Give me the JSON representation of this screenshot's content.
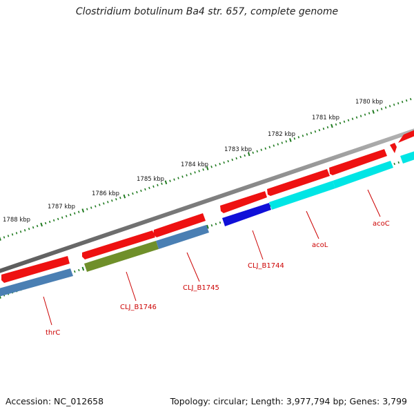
{
  "title": "Clostridium botulinum Ba4 str. 657, complete genome",
  "footer": {
    "accession": "Accession: NC_012658",
    "topology": "Topology: circular; Length: 3,977,794 bp; Genes: 3,799"
  },
  "ruler_labels": [
    "1780 kbp",
    "1781 kbp",
    "1782 kbp",
    "1783 kbp",
    "1784 kbp",
    "1785 kbp",
    "1786 kbp",
    "1787 kbp",
    "1788 kbp"
  ],
  "gene_labels": [
    "acoC",
    "acoL",
    "CLJ_B1744",
    "CLJ_B1745",
    "CLJ_B1746",
    "thrC"
  ],
  "colors": {
    "backbone": "#8a8a8a",
    "ruler": "#1f7a1f",
    "red_feature": "#ee1111",
    "cyan_feature": "#00e5e5",
    "blue_feature": "#1010d8",
    "steel_feature": "#4a7fb3",
    "olive_feature": "#6f8f2a",
    "gene_label": "#cc0000"
  }
}
